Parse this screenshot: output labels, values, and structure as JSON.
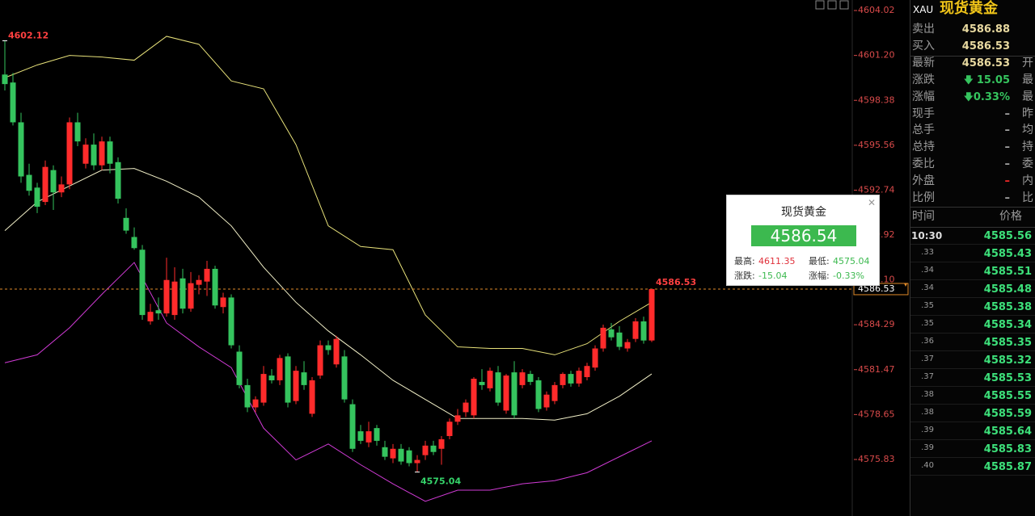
{
  "chart_data": {
    "type": "candlestick",
    "open": [
      4600.0,
      4599.5,
      4597.0,
      4593.7,
      4592.9,
      4592.0,
      4594.0,
      4592.6,
      4593.1,
      4597.0,
      4594.4,
      4595.6,
      4594.3,
      4595.8,
      4594.5,
      4591.0,
      4589.8,
      4589.0,
      4584.5,
      4585.2,
      4585.0,
      4584.9,
      4587.2,
      4585.3,
      4586.8,
      4587.0,
      4587.8,
      4585.4,
      4586.0,
      4582.6,
      4580.5,
      4579.1,
      4579.4,
      4581.1,
      4580.8,
      4582.3,
      4579.5,
      4581.3,
      4578.7,
      4581.1,
      4583.0,
      4581.8,
      4582.3,
      4579.3,
      4577.6,
      4576.9,
      4577.8,
      4576.6,
      4575.9,
      4576.5,
      4576.4,
      4575.6,
      4576.1,
      4576.7,
      4576.5,
      4577.3,
      4578.2,
      4578.8,
      4578.6,
      4580.7,
      4580.3,
      4581.3,
      4578.9,
      4581.3,
      4580.5,
      4581.2,
      4580.8,
      4579.1,
      4579.5,
      4580.5,
      4581.2,
      4580.6,
      4581.0,
      4581.6,
      4582.8,
      4584.0,
      4583.8,
      4582.8,
      4583.4,
      4584.5,
      4583.3
    ],
    "high": [
      4602.12,
      4600.1,
      4597.6,
      4594.4,
      4593.2,
      4594.6,
      4594.3,
      4593.6,
      4597.3,
      4597.6,
      4596.0,
      4596.3,
      4596.1,
      4596.1,
      4594.8,
      4591.6,
      4590.4,
      4589.3,
      4585.6,
      4586.0,
      4588.5,
      4587.9,
      4587.8,
      4587.6,
      4587.4,
      4588.3,
      4588.0,
      4586.3,
      4586.2,
      4583.0,
      4580.9,
      4579.8,
      4581.7,
      4581.5,
      4582.4,
      4582.5,
      4581.7,
      4582.0,
      4581.0,
      4583.3,
      4583.3,
      4583.6,
      4582.7,
      4579.6,
      4578.0,
      4578.2,
      4578.0,
      4577.0,
      4576.8,
      4576.8,
      4576.6,
      4576.1,
      4577.0,
      4577.0,
      4577.3,
      4578.4,
      4579.0,
      4579.6,
      4581.0,
      4581.5,
      4581.6,
      4581.7,
      4581.2,
      4582.0,
      4581.5,
      4581.4,
      4581.0,
      4580.1,
      4580.7,
      4581.3,
      4581.4,
      4581.6,
      4581.9,
      4583.0,
      4584.3,
      4584.4,
      4584.2,
      4583.4,
      4584.7,
      4584.8,
      4586.53
    ],
    "low": [
      4599.0,
      4596.8,
      4593.2,
      4592.4,
      4591.3,
      4591.8,
      4591.5,
      4592.3,
      4592.8,
      4595.5,
      4594.1,
      4594.0,
      4594.0,
      4593.8,
      4591.9,
      4590.0,
      4589.0,
      4584.6,
      4584.3,
      4584.6,
      4584.8,
      4584.6,
      4585.0,
      4585.1,
      4586.2,
      4586.1,
      4585.3,
      4585.0,
      4582.8,
      4580.3,
      4578.8,
      4578.8,
      4579.2,
      4580.6,
      4580.5,
      4579.1,
      4579.3,
      4580.2,
      4578.5,
      4580.9,
      4582.4,
      4581.6,
      4579.4,
      4576.3,
      4576.8,
      4576.6,
      4576.7,
      4575.8,
      4575.6,
      4575.5,
      4575.4,
      4575.04,
      4575.8,
      4576.1,
      4575.5,
      4577.1,
      4578.0,
      4578.5,
      4578.4,
      4580.2,
      4580.1,
      4579.2,
      4578.7,
      4578.4,
      4580.3,
      4580.5,
      4578.8,
      4578.9,
      4579.3,
      4580.3,
      4580.4,
      4580.4,
      4580.8,
      4581.4,
      4582.6,
      4583.3,
      4582.7,
      4582.6,
      4583.2,
      4583.1,
      4583.2
    ],
    "close": [
      4599.4,
      4597.0,
      4593.6,
      4592.7,
      4591.7,
      4594.2,
      4592.6,
      4593.1,
      4597.0,
      4595.8,
      4595.6,
      4594.3,
      4595.8,
      4594.4,
      4592.2,
      4590.2,
      4589.1,
      4584.9,
      4585.1,
      4585.0,
      4587.1,
      4587.0,
      4585.3,
      4586.9,
      4587.1,
      4587.8,
      4585.5,
      4586.0,
      4583.0,
      4580.5,
      4579.1,
      4579.6,
      4581.2,
      4580.8,
      4582.2,
      4579.4,
      4581.4,
      4580.5,
      4580.8,
      4583.0,
      4582.7,
      4583.4,
      4579.6,
      4576.5,
      4577.0,
      4577.6,
      4577.0,
      4576.0,
      4576.5,
      4575.7,
      4575.6,
      4575.8,
      4576.7,
      4576.3,
      4577.1,
      4578.2,
      4578.6,
      4579.4,
      4580.9,
      4580.5,
      4581.4,
      4579.4,
      4581.1,
      4578.6,
      4581.3,
      4580.7,
      4579.0,
      4579.9,
      4580.5,
      4581.2,
      4580.6,
      4581.4,
      4581.7,
      4582.8,
      4584.1,
      4583.5,
      4582.9,
      4583.2,
      4584.5,
      4583.3,
      4586.53
    ],
    "up_color": "#ff2b2b",
    "down_color": "#35c45e",
    "ylim": [
      4572.99,
      4604.68
    ],
    "yticks": [
      4604.02,
      {
        "value": 4601.2,
        "label": "4601.20"
      },
      4598.38,
      4595.56,
      4592.74,
      4589.92,
      {
        "value": 4587.1,
        "label": "4587.10"
      },
      4584.29,
      4581.47,
      4578.65,
      4575.83
    ],
    "bands": [
      {
        "color": "#e8e27a",
        "x": [
          0,
          4,
          8,
          12,
          16,
          20,
          24,
          28,
          32,
          36,
          40,
          44,
          48,
          52,
          56,
          60,
          64,
          68,
          72,
          76,
          80
        ],
        "values": [
          4599.8,
          4600.6,
          4601.2,
          4601.1,
          4600.9,
          4602.4,
          4601.9,
          4599.6,
          4599.1,
          4595.6,
          4590.5,
          4589.2,
          4589.0,
          4584.9,
          4582.9,
          4582.8,
          4582.8,
          4582.4,
          4583.1,
          4584.5,
          4585.7
        ]
      },
      {
        "color": "#f2f0c8",
        "x": [
          0,
          4,
          8,
          12,
          16,
          20,
          24,
          28,
          32,
          36,
          40,
          44,
          48,
          52,
          56,
          60,
          64,
          68,
          72,
          76,
          80
        ],
        "values": [
          4590.2,
          4592.0,
          4593.0,
          4594.0,
          4594.1,
          4593.3,
          4592.3,
          4590.5,
          4587.9,
          4585.7,
          4583.9,
          4582.4,
          4580.8,
          4579.6,
          4578.4,
          4578.4,
          4578.4,
          4578.3,
          4578.7,
          4579.8,
          4581.2
        ]
      },
      {
        "color": "#d13bd6",
        "x": [
          0,
          4,
          8,
          12,
          16,
          20,
          24,
          28,
          32,
          36,
          40,
          44,
          48,
          52,
          56,
          60,
          64,
          68,
          72,
          76,
          80
        ],
        "values": [
          4581.9,
          4582.4,
          4584.1,
          4586.2,
          4588.2,
          4584.4,
          4582.9,
          4581.6,
          4577.8,
          4575.8,
          4576.8,
          4575.5,
          4574.3,
          4573.2,
          4573.9,
          4573.9,
          4574.3,
          4574.5,
          4575.0,
          4576.0,
          4577.0
        ]
      }
    ],
    "high_label": 4602.12,
    "low_label": 4575.04,
    "last_price": 4586.53
  },
  "quote": {
    "symbol": "XAU",
    "name": "现货黄金",
    "rows": [
      {
        "label": "卖出",
        "value": "4586.88"
      },
      {
        "label": "买入",
        "value": "4586.53"
      },
      {
        "label": "最新",
        "value": "4586.53",
        "side": "开"
      },
      {
        "label": "涨跌",
        "value": "15.05",
        "side": "最",
        "color": "#35c45e"
      },
      {
        "label": "涨幅",
        "value": "0.33%",
        "side": "最",
        "color": "#35c45e"
      },
      {
        "label": "现手",
        "value": "–",
        "side": "昨"
      },
      {
        "label": "总手",
        "value": "–",
        "side": "均"
      },
      {
        "label": "总持",
        "value": "–",
        "side": "持"
      },
      {
        "label": "委比",
        "value": "–",
        "side": "委"
      },
      {
        "label": "外盘",
        "value": "–",
        "side": "内",
        "color": "#ff2b2b"
      },
      {
        "label": "比例",
        "value": "–",
        "side": "比"
      }
    ]
  },
  "trades": {
    "headers": [
      "时间",
      "价格"
    ],
    "rows": [
      [
        "10:30",
        "4585.56"
      ],
      [
        ".33",
        "4585.43"
      ],
      [
        ".34",
        "4585.51"
      ],
      [
        ".34",
        "4585.48"
      ],
      [
        ".35",
        "4585.38"
      ],
      [
        ".35",
        "4585.34"
      ],
      [
        ".36",
        "4585.35"
      ],
      [
        ".37",
        "4585.32"
      ],
      [
        ".37",
        "4585.53"
      ],
      [
        ".38",
        "4585.55"
      ],
      [
        ".38",
        "4585.59"
      ],
      [
        ".39",
        "4585.64"
      ],
      [
        ".39",
        "4585.83"
      ],
      [
        ".40",
        "4585.87"
      ]
    ]
  },
  "popup": {
    "title": "现货黄金",
    "price": "4586.54",
    "high_label": "最高:",
    "high": "4611.35",
    "low_label": "最低:",
    "low": "4575.04",
    "change_label": "涨跌:",
    "change": "-15.04",
    "pct_label": "涨幅:",
    "pct": "-0.33%"
  }
}
